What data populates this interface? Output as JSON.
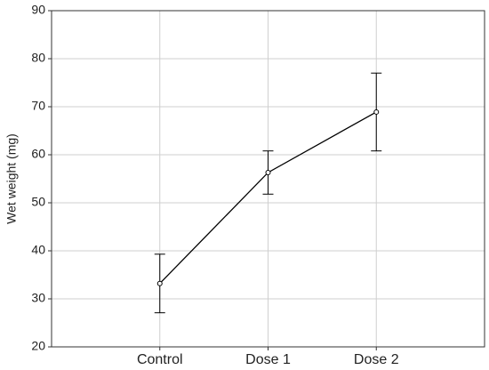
{
  "chart_data": {
    "type": "line",
    "ylabel": "Wet weight (mg)",
    "categories": [
      "Control",
      "Dose 1",
      "Dose 2"
    ],
    "values": [
      33.2,
      56.3,
      68.9
    ],
    "errors": [
      6.1,
      4.5,
      8.1
    ],
    "color": "#000000",
    "ylim": [
      20,
      90
    ],
    "yticks": [
      20,
      30,
      40,
      50,
      60,
      70,
      80,
      90
    ],
    "grid": true
  }
}
